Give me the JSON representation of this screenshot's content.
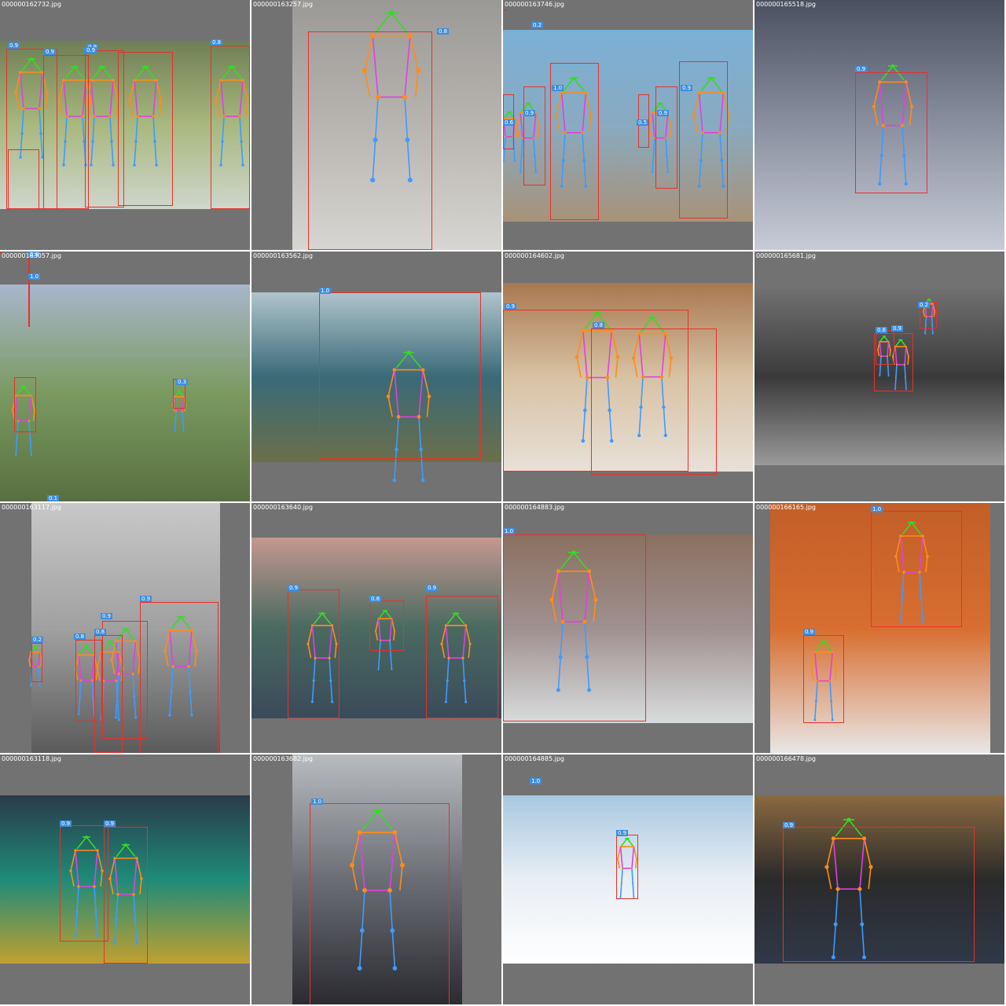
{
  "tiles": [
    {
      "file": "000000162732.jpg",
      "scores": [
        "0.9",
        "0.9",
        "0.9",
        "0.8",
        "0.8",
        "0.9"
      ]
    },
    {
      "file": "000000163257.jpg",
      "scores": [
        "0.8"
      ]
    },
    {
      "file": "000000163746.jpg",
      "scores": [
        "0.2",
        "1.0",
        "0.9",
        "0.6",
        "0.9",
        "0.5",
        "0.9"
      ]
    },
    {
      "file": "000000165518.jpg",
      "scores": [
        "0.9"
      ]
    },
    {
      "file": "000000163057.jpg",
      "scores": [
        "0.8",
        "1.0",
        "0.3",
        "0.1"
      ]
    },
    {
      "file": "000000163562.jpg",
      "scores": [
        "1.0"
      ]
    },
    {
      "file": "000000164602.jpg",
      "scores": [
        "0.9",
        "0.8"
      ]
    },
    {
      "file": "000000165681.jpg",
      "scores": [
        "0.2",
        "0.9",
        "0.8"
      ]
    },
    {
      "file": "000000163117.jpg",
      "scores": [
        "0.9",
        "0.9",
        "0.8",
        "0.8",
        "0.2"
      ]
    },
    {
      "file": "000000163640.jpg",
      "scores": [
        "0.9",
        "0.8",
        "0.9"
      ]
    },
    {
      "file": "000000164883.jpg",
      "scores": [
        "1.0"
      ]
    },
    {
      "file": "000000166165.jpg",
      "scores": [
        "1.0",
        "0.9"
      ]
    },
    {
      "file": "000000163118.jpg",
      "scores": [
        "0.9",
        "0.9"
      ]
    },
    {
      "file": "000000163682.jpg",
      "scores": [
        "1.0"
      ]
    },
    {
      "file": "000000164885.jpg",
      "scores": [
        "1.0",
        "0.9"
      ]
    },
    {
      "file": "000000166478.jpg",
      "scores": [
        "0.9"
      ]
    }
  ],
  "colors": {
    "tile_background": "#727272",
    "box": "#e8302c",
    "score_label": "#3d8ede",
    "skeleton_head": "#33dd22",
    "skeleton_arms": "#ff8c1a",
    "skeleton_torso": "#e040e0",
    "skeleton_legs": "#3d9bff"
  },
  "icons": {
    "photo": "photo-thumbnail",
    "box": "bounding-box",
    "skeleton": "pose-skeleton"
  }
}
